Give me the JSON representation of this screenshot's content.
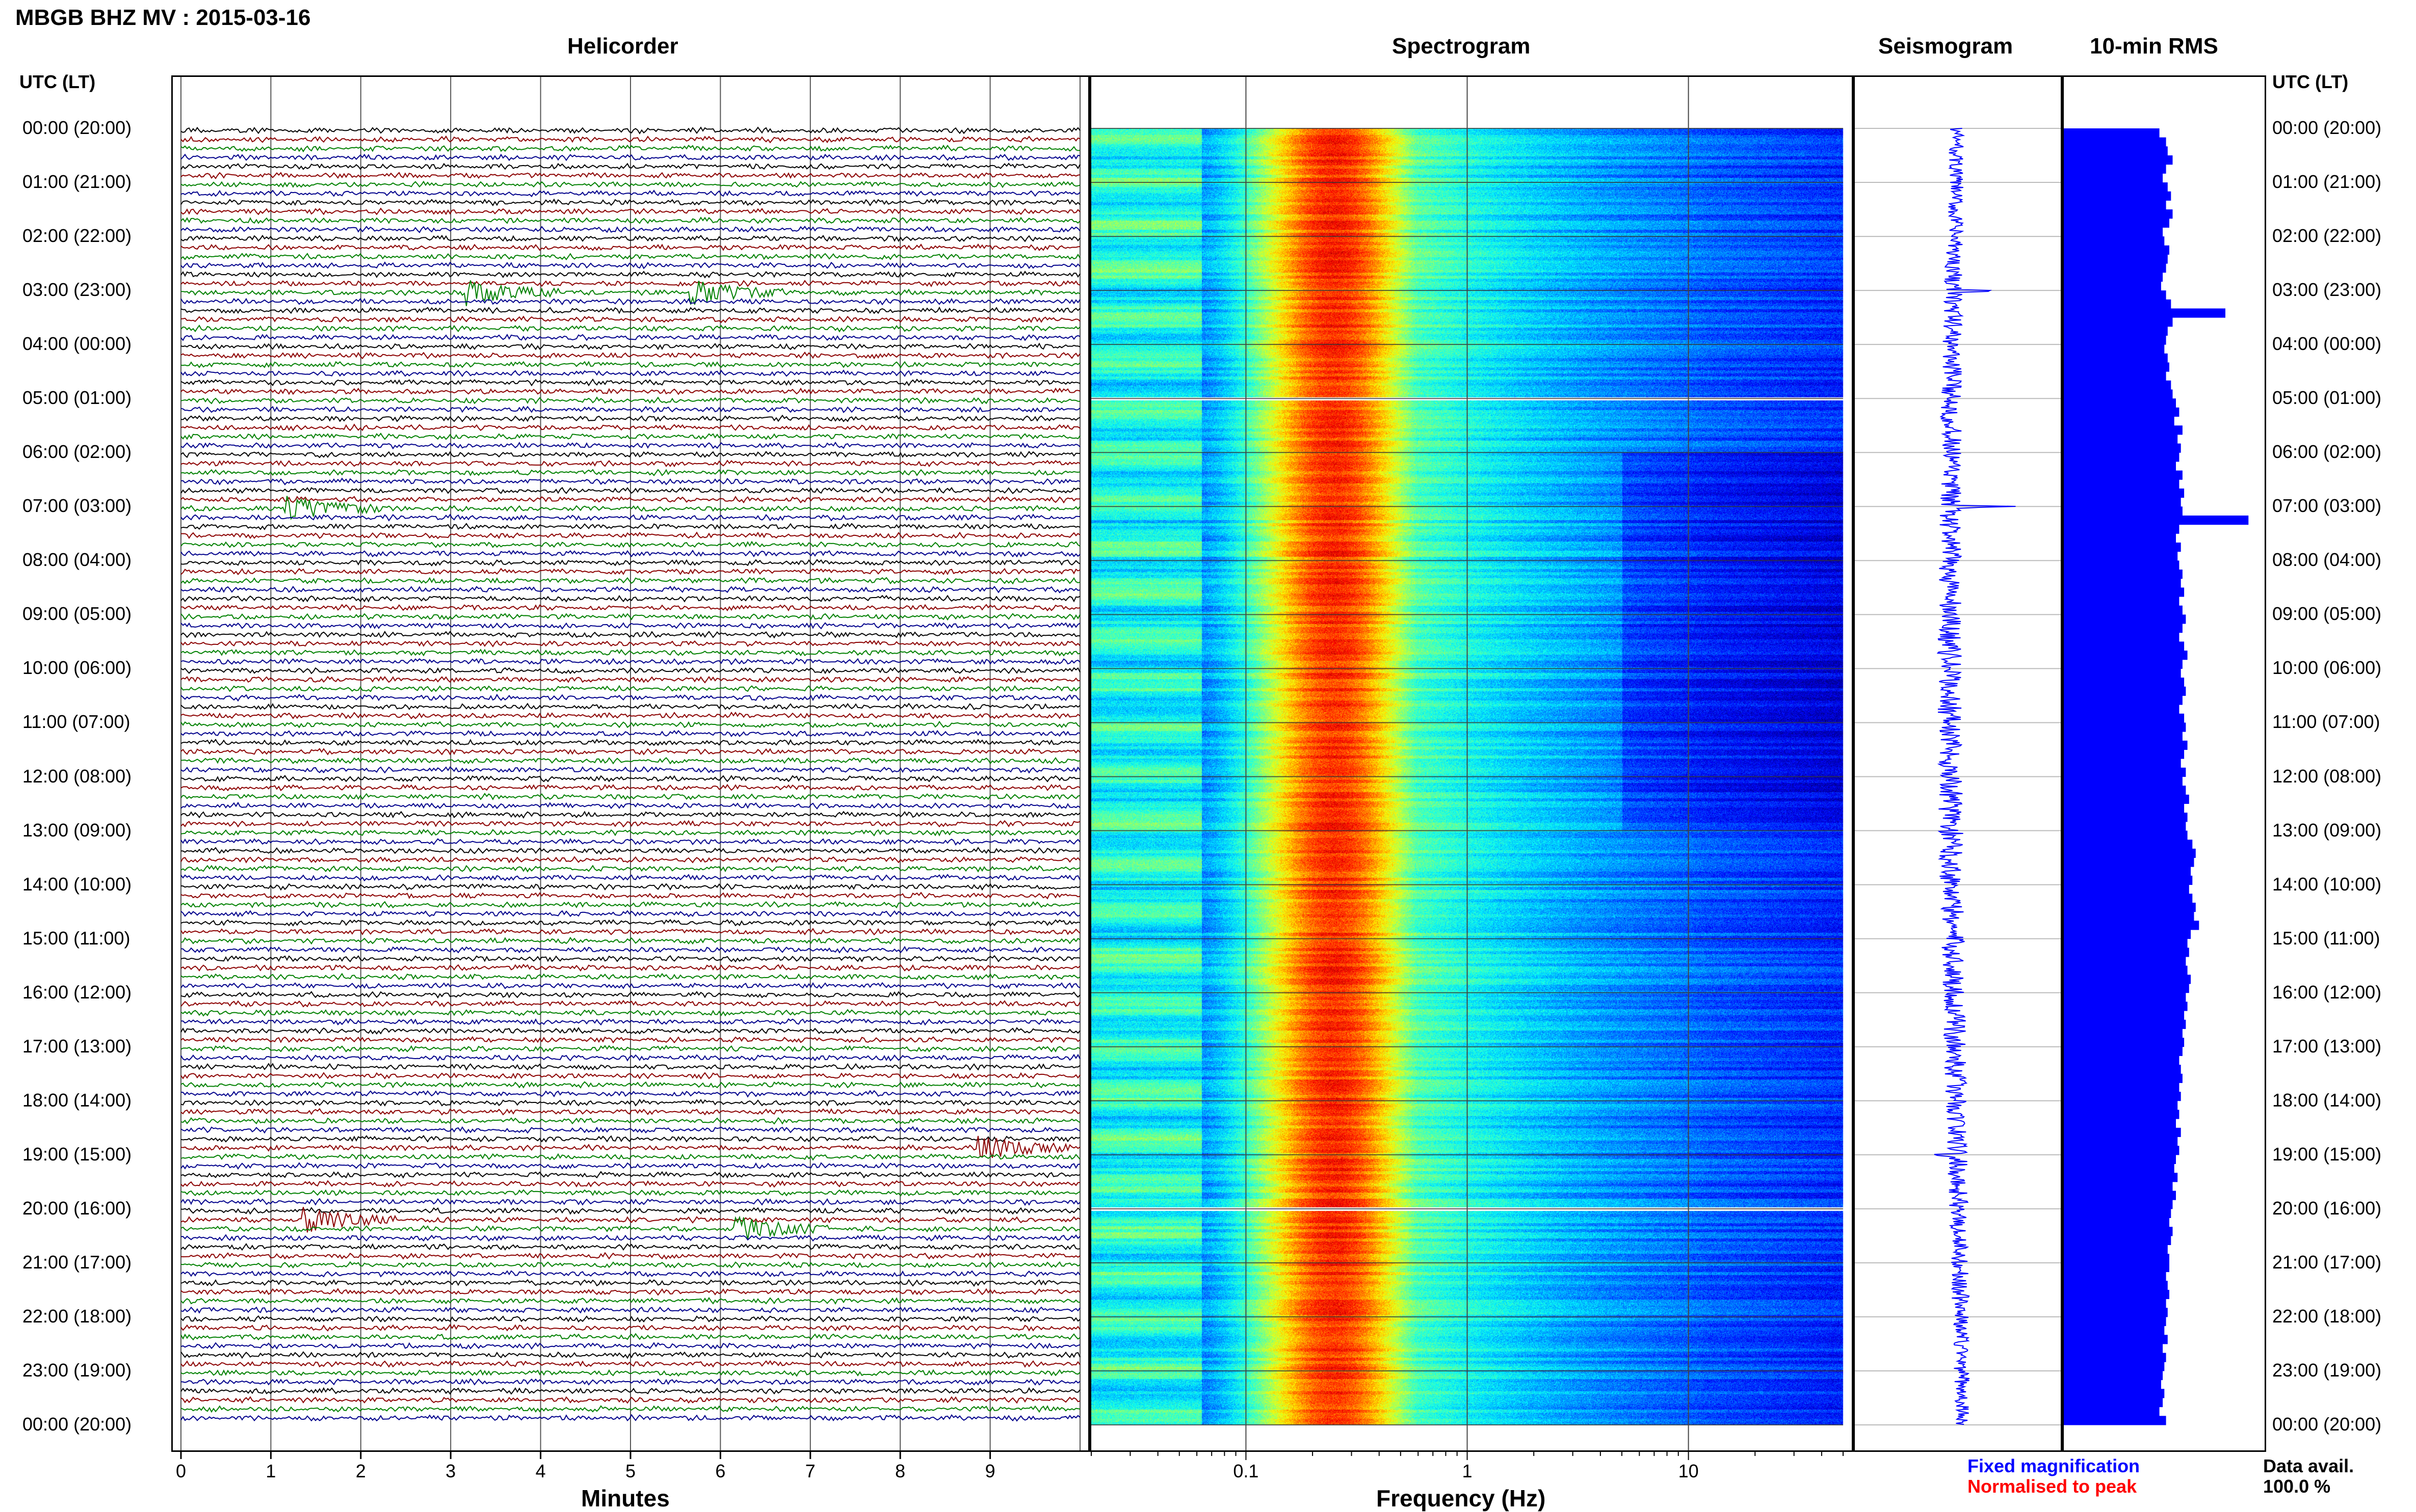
{
  "header": {
    "title": "MBGB BHZ MV : 2015-03-16",
    "utc_lt_left": "UTC (LT)",
    "utc_lt_right": "UTC (LT)"
  },
  "panels": {
    "helicorder": "Helicorder",
    "spectrogram": "Spectrogram",
    "seismogram": "Seismogram",
    "rms": "10-min RMS"
  },
  "time_labels": [
    "00:00 (20:00)",
    "01:00 (21:00)",
    "02:00 (22:00)",
    "03:00 (23:00)",
    "04:00 (00:00)",
    "05:00 (01:00)",
    "06:00 (02:00)",
    "07:00 (03:00)",
    "08:00 (04:00)",
    "09:00 (05:00)",
    "10:00 (06:00)",
    "11:00 (07:00)",
    "12:00 (08:00)",
    "13:00 (09:00)",
    "14:00 (10:00)",
    "15:00 (11:00)",
    "16:00 (12:00)",
    "17:00 (13:00)",
    "18:00 (14:00)",
    "19:00 (15:00)",
    "20:00 (16:00)",
    "21:00 (17:00)",
    "22:00 (18:00)",
    "23:00 (19:00)",
    "00:00 (20:00)"
  ],
  "axes": {
    "minutes_label": "Minutes",
    "minutes_ticks": [
      "0",
      "1",
      "2",
      "3",
      "4",
      "5",
      "6",
      "7",
      "8",
      "9"
    ],
    "frequency_label": "Frequency (Hz)",
    "frequency_ticks": [
      "0.1",
      "1",
      "10"
    ]
  },
  "legend": {
    "fixed": "Fixed magnification",
    "normalised": "Normalised to peak",
    "data_avail_label": "Data avail.",
    "data_avail_value": "100.0 %"
  },
  "colors": {
    "fixed": "#0000ff",
    "normalised": "#ff0000",
    "trace_colors": [
      "#000000",
      "#8b0000",
      "#008000",
      "#00008b"
    ],
    "rms_bar": "#0000ff"
  },
  "chart_data": [
    {
      "type": "line",
      "title": "Helicorder",
      "xlabel": "Minutes",
      "xlim": [
        0,
        10
      ],
      "rows": 144,
      "events": [
        {
          "hour": 3.0,
          "minute": 3.3
        },
        {
          "hour": 3.0,
          "minute": 5.8
        },
        {
          "hour": 7.0,
          "minute": 1.3
        },
        {
          "hour": 18.9,
          "minute": 9.0
        },
        {
          "hour": 20.2,
          "minute": 1.5
        },
        {
          "hour": 20.3,
          "minute": 6.3
        }
      ]
    },
    {
      "type": "heatmap",
      "title": "Spectrogram",
      "xlabel": "Frequency (Hz)",
      "xscale": "log",
      "xlim": [
        0.02,
        50
      ],
      "peak_frequency_hz": 0.25,
      "gaps_hours": [
        5.0,
        20.0
      ]
    },
    {
      "type": "line",
      "title": "Seismogram",
      "spikes_hours": [
        3.0,
        7.0,
        19.0
      ]
    },
    {
      "type": "bar",
      "title": "10-min RMS",
      "interval_minutes": 10,
      "values": [
        0.58,
        0.62,
        0.63,
        0.66,
        0.62,
        0.6,
        0.63,
        0.65,
        0.62,
        0.66,
        0.64,
        0.6,
        0.61,
        0.64,
        0.63,
        0.62,
        0.6,
        0.59,
        0.62,
        0.65,
        0.98,
        0.66,
        0.63,
        0.62,
        0.61,
        0.63,
        0.64,
        0.62,
        0.65,
        0.66,
        0.68,
        0.7,
        0.67,
        0.72,
        0.69,
        0.71,
        0.7,
        0.68,
        0.72,
        0.7,
        0.73,
        0.71,
        0.72,
        1.12,
        0.7,
        0.68,
        0.71,
        0.69,
        0.7,
        0.72,
        0.71,
        0.73,
        0.7,
        0.72,
        0.74,
        0.72,
        0.7,
        0.73,
        0.75,
        0.72,
        0.71,
        0.73,
        0.74,
        0.72,
        0.7,
        0.73,
        0.74,
        0.72,
        0.75,
        0.73,
        0.71,
        0.74,
        0.72,
        0.74,
        0.76,
        0.73,
        0.75,
        0.74,
        0.75,
        0.78,
        0.8,
        0.79,
        0.77,
        0.78,
        0.76,
        0.78,
        0.8,
        0.79,
        0.82,
        0.77,
        0.75,
        0.76,
        0.74,
        0.75,
        0.77,
        0.76,
        0.74,
        0.75,
        0.73,
        0.74,
        0.72,
        0.73,
        0.72,
        0.7,
        0.71,
        0.72,
        0.7,
        0.71,
        0.69,
        0.7,
        0.68,
        0.71,
        0.69,
        0.7,
        0.68,
        0.67,
        0.69,
        0.66,
        0.68,
        0.66,
        0.65,
        0.64,
        0.66,
        0.65,
        0.63,
        0.64,
        0.64,
        0.62,
        0.63,
        0.64,
        0.62,
        0.63,
        0.62,
        0.61,
        0.63,
        0.6,
        0.62,
        0.61,
        0.6,
        0.59,
        0.61,
        0.6,
        0.58,
        0.62
      ]
    }
  ]
}
